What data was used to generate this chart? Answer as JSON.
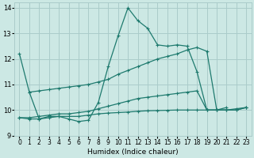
{
  "xlabel": "Humidex (Indice chaleur)",
  "xlim": [
    -0.5,
    23.5
  ],
  "ylim": [
    9,
    14.2
  ],
  "yticks": [
    9,
    10,
    11,
    12,
    13,
    14
  ],
  "xticks": [
    0,
    1,
    2,
    3,
    4,
    5,
    6,
    7,
    8,
    9,
    10,
    11,
    12,
    13,
    14,
    15,
    16,
    17,
    18,
    19,
    20,
    21,
    22,
    23
  ],
  "bg_color": "#cce8e4",
  "grid_color": "#aaccca",
  "line_color": "#1e7a6e",
  "lines": [
    {
      "x": [
        0,
        1,
        2,
        3,
        4,
        5,
        6,
        7,
        8,
        9,
        10,
        11,
        12,
        13,
        14,
        15,
        16,
        17,
        18,
        19,
        20,
        21,
        22,
        23
      ],
      "y": [
        9.7,
        9.65,
        9.65,
        9.7,
        9.75,
        9.75,
        9.75,
        9.8,
        9.85,
        9.88,
        9.9,
        9.92,
        9.95,
        9.97,
        9.98,
        9.99,
        10.0,
        10.0,
        10.0,
        10.0,
        10.0,
        10.0,
        10.0,
        10.1
      ]
    },
    {
      "x": [
        0,
        1,
        2,
        3,
        4,
        5,
        6,
        7,
        8,
        9,
        10,
        11,
        12,
        13,
        14,
        15,
        16,
        17,
        18,
        19,
        20,
        21,
        22,
        23
      ],
      "y": [
        9.7,
        9.7,
        9.75,
        9.8,
        9.85,
        9.85,
        9.9,
        9.95,
        10.05,
        10.15,
        10.25,
        10.35,
        10.45,
        10.5,
        10.55,
        10.6,
        10.65,
        10.7,
        10.75,
        10.0,
        10.0,
        10.0,
        10.0,
        10.1
      ]
    },
    {
      "x": [
        1,
        2,
        3,
        4,
        5,
        6,
        7,
        8,
        9,
        10,
        11,
        12,
        13,
        14,
        15,
        16,
        17,
        18,
        19,
        20,
        21,
        22,
        23
      ],
      "y": [
        10.7,
        10.75,
        10.8,
        10.85,
        10.9,
        10.95,
        11.0,
        11.1,
        11.2,
        11.4,
        11.55,
        11.7,
        11.85,
        12.0,
        12.1,
        12.2,
        12.35,
        12.45,
        12.3,
        10.0,
        10.0,
        10.05,
        10.1
      ]
    },
    {
      "x": [
        0,
        1,
        2,
        3,
        4,
        5,
        6,
        7,
        8,
        9,
        10,
        11,
        12,
        13,
        14,
        15,
        16,
        17,
        18,
        19,
        20,
        21
      ],
      "y": [
        12.2,
        10.7,
        9.65,
        9.75,
        9.75,
        9.65,
        9.55,
        9.6,
        10.3,
        11.7,
        12.9,
        14.0,
        13.5,
        13.2,
        12.55,
        12.5,
        12.55,
        12.5,
        11.5,
        10.0,
        10.0,
        10.1
      ]
    }
  ]
}
